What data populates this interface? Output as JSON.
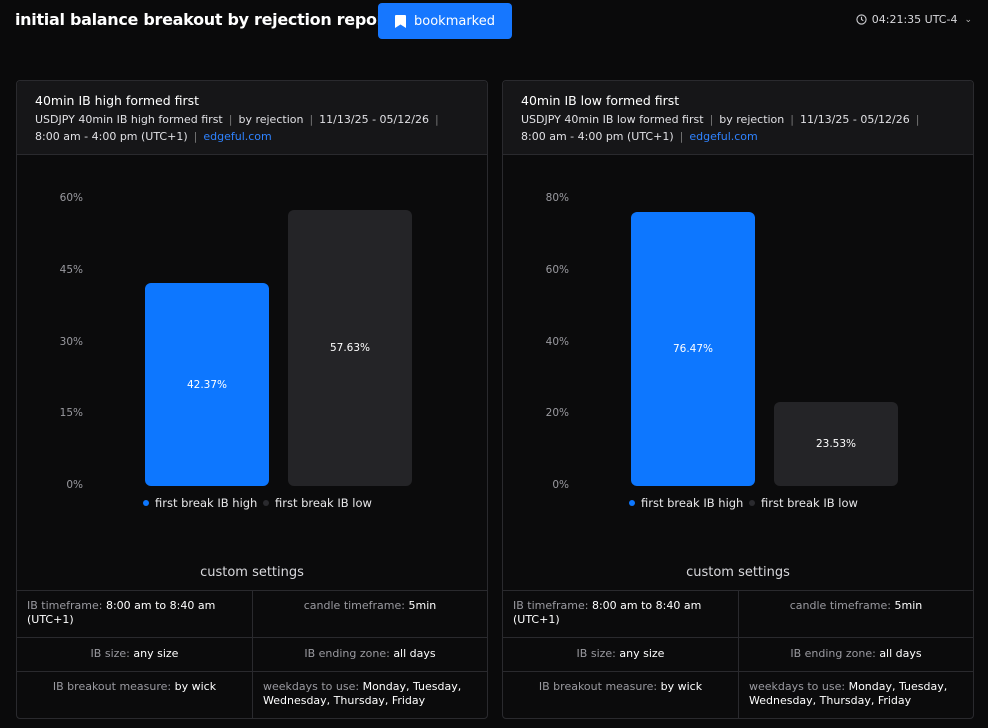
{
  "header": {
    "title": "initial balance breakout by rejection report",
    "bookmark_label": "bookmarked",
    "clock": "04:21:35 UTC-4",
    "icons": [
      "bookmark-icon",
      "clock-icon",
      "chevron-down-icon"
    ]
  },
  "panels": [
    {
      "title": "40min IB high formed first",
      "meta_symbol": "USDJPY 40min IB high formed first",
      "meta_by": "by rejection",
      "meta_dates": "11/13/25 - 05/12/26",
      "meta_session": "8:00 am - 4:00 pm (UTC+1)",
      "meta_link": "edgeful.com",
      "custom_title": "custom settings",
      "settings": {
        "ib_timeframe_label": "IB timeframe:",
        "ib_timeframe_value": "8:00 am to 8:40 am (UTC+1)",
        "candle_label": "candle timeframe:",
        "candle_value": "5min",
        "ib_size_label": "IB size:",
        "ib_size_value": "any size",
        "ib_ending_label": "IB ending zone:",
        "ib_ending_value": "all days",
        "breakout_label": "IB breakout measure:",
        "breakout_value": "by wick",
        "weekdays_label": "weekdays to use:",
        "weekdays_value": "Monday, Tuesday, Wednesday, Thursday, Friday"
      }
    },
    {
      "title": "40min IB low formed first",
      "meta_symbol": "USDJPY 40min IB low formed first",
      "meta_by": "by rejection",
      "meta_dates": "11/13/25 - 05/12/26",
      "meta_session": "8:00 am - 4:00 pm (UTC+1)",
      "meta_link": "edgeful.com",
      "custom_title": "custom settings",
      "settings": {
        "ib_timeframe_label": "IB timeframe:",
        "ib_timeframe_value": "8:00 am to 8:40 am (UTC+1)",
        "candle_label": "candle timeframe:",
        "candle_value": "5min",
        "ib_size_label": "IB size:",
        "ib_size_value": "any size",
        "ib_ending_label": "IB ending zone:",
        "ib_ending_value": "all days",
        "breakout_label": "IB breakout measure:",
        "breakout_value": "by wick",
        "weekdays_label": "weekdays to use:",
        "weekdays_value": "Monday, Tuesday, Wednesday, Thursday, Friday"
      }
    }
  ],
  "chart_data": [
    {
      "type": "bar",
      "categories": [
        "first break IB high",
        "first break IB low"
      ],
      "values": [
        42.37,
        57.63
      ],
      "labels": [
        "42.37%",
        "57.63%"
      ],
      "yticks": [
        "60%",
        "45%",
        "30%",
        "15%",
        "0%"
      ],
      "ylim": [
        0,
        60
      ],
      "colors": [
        "#0d77ff",
        "#242427"
      ],
      "legend": [
        "first break IB high",
        "first break IB low"
      ],
      "legend_colors": [
        "#0d77ff",
        "#2a2a2e"
      ],
      "grid": false,
      "legend_position": "bottom"
    },
    {
      "type": "bar",
      "categories": [
        "first break IB high",
        "first break IB low"
      ],
      "values": [
        76.47,
        23.53
      ],
      "labels": [
        "76.47%",
        "23.53%"
      ],
      "yticks": [
        "80%",
        "60%",
        "40%",
        "20%",
        "0%"
      ],
      "ylim": [
        0,
        80
      ],
      "colors": [
        "#0d77ff",
        "#242427"
      ],
      "legend": [
        "first break IB high",
        "first break IB low"
      ],
      "legend_colors": [
        "#0d77ff",
        "#2a2a2e"
      ],
      "grid": false,
      "legend_position": "bottom"
    }
  ]
}
